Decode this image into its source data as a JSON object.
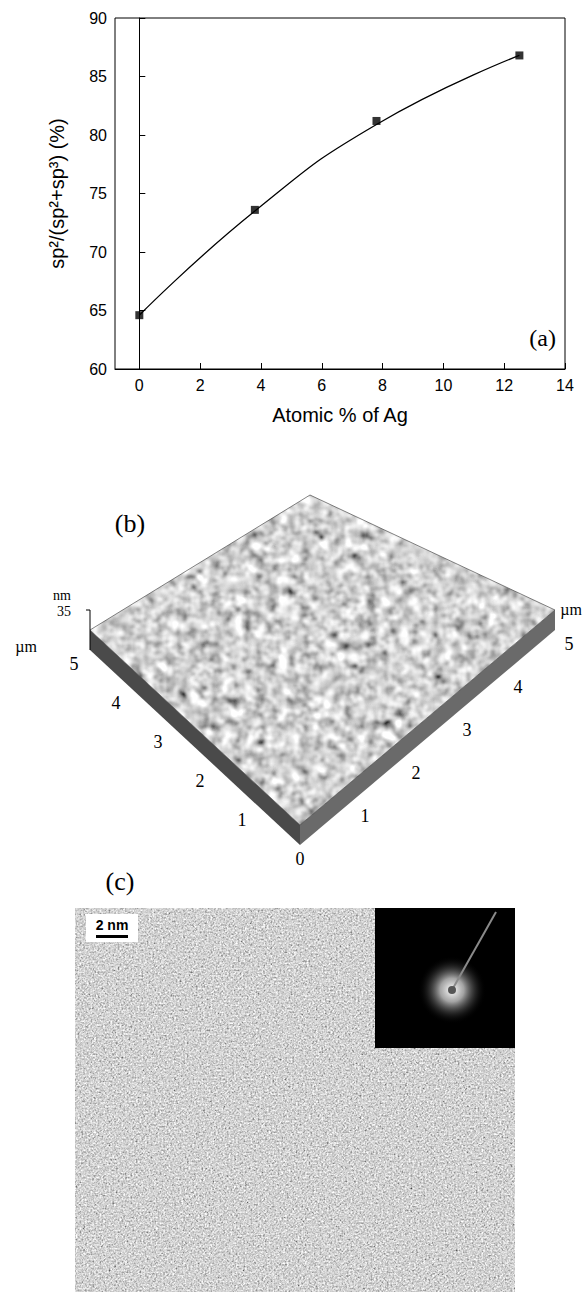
{
  "chart_data": {
    "type": "scatter",
    "x_label": "Atomic % of Ag",
    "y_label": "sp²/(sp²+sp³) (%)",
    "annotation": "(a)",
    "x": [
      0,
      3.8,
      7.8,
      12.5
    ],
    "series": [
      {
        "type": "scatter",
        "marker": "square",
        "color": "#000000",
        "values": [
          64.6,
          73.6,
          81.2,
          86.8
        ]
      },
      {
        "type": "line",
        "line_style": "solid",
        "color": "#000000",
        "values": [
          64.6,
          73.5,
          80.9,
          86.8
        ]
      }
    ],
    "xlim": [
      -0.8,
      14
    ],
    "xticks": [
      0,
      2,
      4,
      6,
      8,
      10,
      12,
      14
    ],
    "ylim": [
      60,
      90
    ],
    "yticks": [
      60,
      65,
      70,
      75,
      80,
      85,
      90
    ],
    "grid": false
  },
  "panel_b": {
    "label": "(b)",
    "z_unit": "nm",
    "z_max": 35,
    "xy_unit": "µm",
    "x_ticks": [
      0,
      1,
      2,
      3,
      4,
      5
    ],
    "y_ticks": [
      1,
      2,
      3,
      4,
      5
    ]
  },
  "panel_c": {
    "label": "(c)",
    "scale_bar": "2 nm"
  }
}
